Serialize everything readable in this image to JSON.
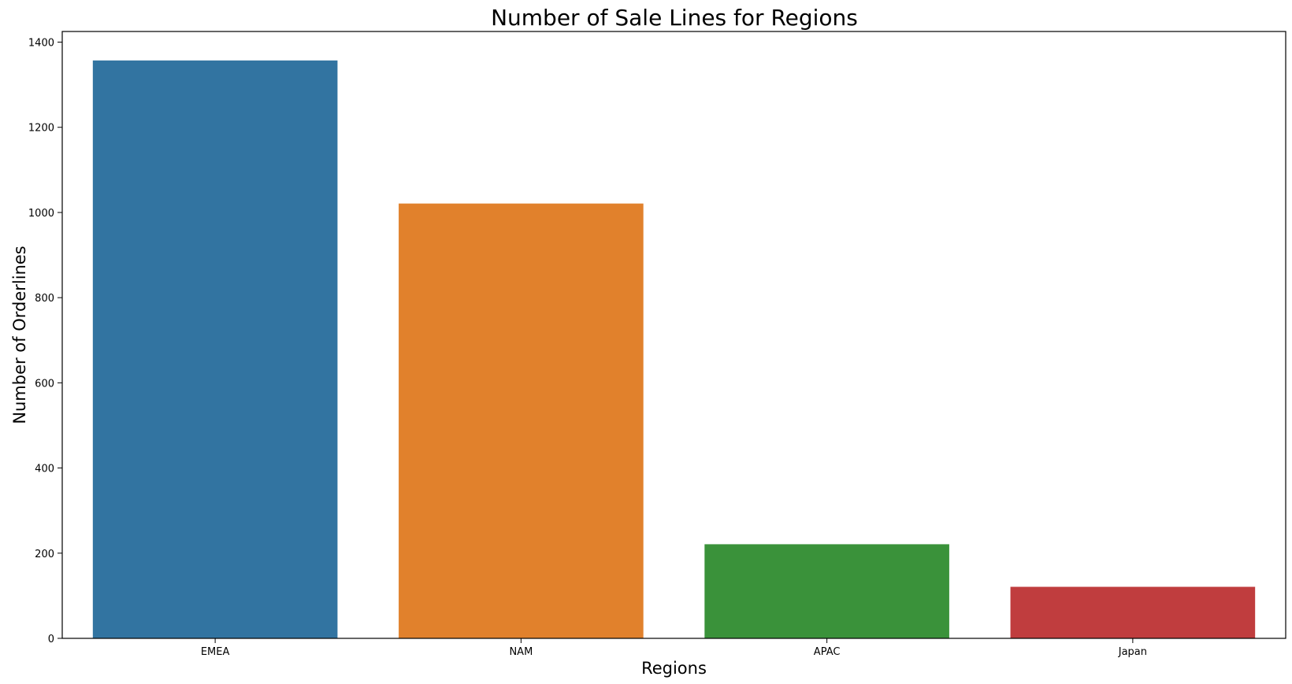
{
  "chart_data": {
    "type": "bar",
    "title": "Number of Sale Lines for Regions",
    "xlabel": "Regions",
    "ylabel": "Number of Orderlines",
    "categories": [
      "EMEA",
      "NAM",
      "APAC",
      "Japan"
    ],
    "values": [
      1357,
      1021,
      221,
      121
    ],
    "colors": [
      "#3274a1",
      "#e1812c",
      "#3a923a",
      "#c03d3e"
    ],
    "ylim": [
      0,
      1425
    ],
    "yticks": [
      0,
      200,
      400,
      600,
      800,
      1000,
      1200,
      1400
    ],
    "grid": false,
    "legend": "none"
  }
}
